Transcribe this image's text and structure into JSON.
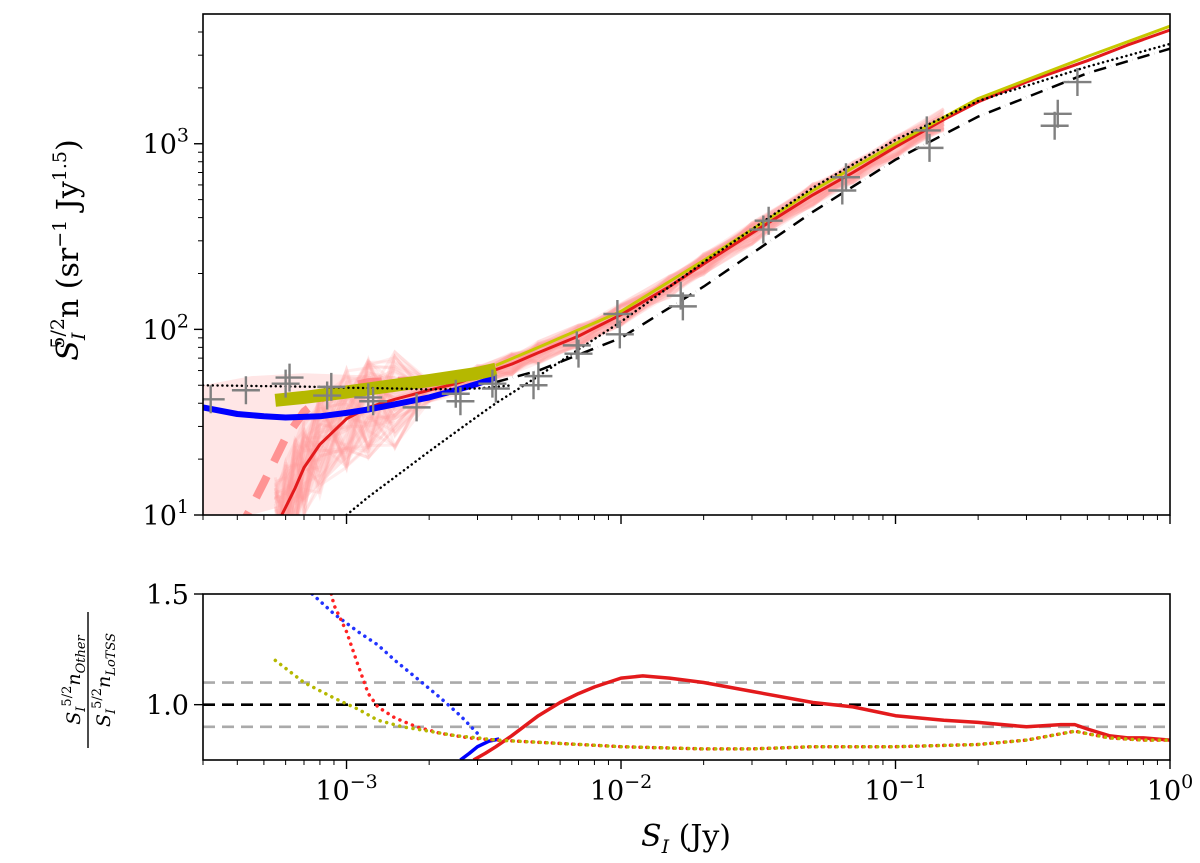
{
  "chart_data": [
    {
      "type": "line",
      "panel": "top",
      "xscale": "log",
      "yscale": "log",
      "xlim": [
        0.0003,
        1.0
      ],
      "ylim": [
        10,
        5000
      ],
      "grid": false,
      "ylabel": {
        "base": "S",
        "sub": "I",
        "sup": "5/2",
        "tail": "n (sr",
        "sup2": "−1",
        "mid": " Jy",
        "sup3": "1.5",
        "end": ")"
      },
      "xticks": [
        {
          "value": 0.001,
          "base": "10",
          "exp": "−3"
        },
        {
          "value": 0.01,
          "base": "10",
          "exp": "−2"
        },
        {
          "value": 0.1,
          "base": "10",
          "exp": "−1"
        },
        {
          "value": 1,
          "base": "10",
          "exp": "0"
        }
      ],
      "yticks": [
        {
          "value": 10,
          "base": "10",
          "exp": "1"
        },
        {
          "value": 100,
          "base": "10",
          "exp": "2"
        },
        {
          "value": 1000,
          "base": "10",
          "exp": "3"
        }
      ],
      "band_color": "#ff9a9a",
      "series": [
        {
          "style": "solid",
          "color": "#e31a1c",
          "width": 3,
          "x": [
            0.00055,
            0.0006,
            0.00065,
            0.0007,
            0.0008,
            0.001,
            0.0012,
            0.0015,
            0.002,
            0.0025,
            0.003,
            0.004,
            0.005,
            0.007,
            0.01,
            0.015,
            0.02,
            0.03,
            0.05,
            0.07,
            0.1,
            0.15,
            0.2,
            0.3,
            0.5,
            0.7,
            1.0
          ],
          "y": [
            8.5,
            11,
            14,
            18,
            24,
            33,
            38,
            42,
            47,
            51,
            56,
            65,
            75,
            92,
            120,
            170,
            225,
            330,
            530,
            700,
            960,
            1350,
            1680,
            2150,
            2800,
            3400,
            4100
          ]
        },
        {
          "style": "dashed",
          "color": "#ff7777",
          "width": 8,
          "opacity": 0.75,
          "x": [
            0.0004,
            0.00045,
            0.0005,
            0.00055,
            0.0006,
            0.0007,
            0.0008,
            0.001,
            0.0012,
            0.0015,
            0.002
          ],
          "y": [
            8,
            11,
            15,
            20,
            26,
            36,
            42,
            49,
            52,
            53,
            53
          ]
        },
        {
          "style": "solid",
          "color": "#0000ff",
          "width": 6,
          "x": [
            0.0003,
            0.0004,
            0.0005,
            0.0006,
            0.0008,
            0.001,
            0.0012,
            0.0015,
            0.002,
            0.0025,
            0.003,
            0.0035
          ],
          "y": [
            38,
            35,
            34,
            33.5,
            34,
            35.5,
            37,
            39.5,
            43,
            47,
            51,
            55
          ]
        },
        {
          "style": "solid",
          "color": "#b5b800",
          "width": 13,
          "x": [
            0.00055,
            0.0007,
            0.001,
            0.0015,
            0.002,
            0.003,
            0.0035
          ],
          "y": [
            41.5,
            43,
            46,
            50,
            53,
            58,
            61
          ]
        },
        {
          "style": "solid",
          "color": "#c6c800",
          "width": 3,
          "x": [
            0.0035,
            0.005,
            0.01,
            0.02,
            0.05,
            0.1,
            0.2,
            0.5,
            1.0
          ],
          "y": [
            64,
            80,
            125,
            235,
            560,
            1000,
            1750,
            2950,
            4300
          ]
        },
        {
          "style": "dotted",
          "color": "#000000",
          "width": 2.5,
          "x": [
            0.0003,
            0.0005,
            0.0008,
            0.001,
            0.0015,
            0.002,
            0.003,
            0.004
          ],
          "y": [
            50,
            49.5,
            49,
            48.5,
            48,
            47.5,
            48,
            50
          ]
        },
        {
          "style": "dotted",
          "color": "#000000",
          "width": 2.5,
          "x": [
            0.001,
            0.0012,
            0.0015,
            0.002,
            0.0025,
            0.003,
            0.0035,
            0.005,
            0.007,
            0.01,
            0.02,
            0.05,
            0.1,
            0.2,
            0.5,
            1.0
          ],
          "y": [
            10,
            12.5,
            16,
            22,
            28,
            34,
            40,
            56,
            78,
            110,
            230,
            580,
            1050,
            1700,
            2600,
            3450
          ]
        },
        {
          "style": "dashdot",
          "color": "#000000",
          "width": 2.5,
          "x": [
            0.0035,
            0.005,
            0.01,
            0.02,
            0.05,
            0.1,
            0.2,
            0.5,
            1.0
          ],
          "y": [
            52,
            60,
            90,
            170,
            430,
            820,
            1400,
            2400,
            3250
          ]
        }
      ],
      "points": {
        "color": "#808080",
        "x": [
          0.00032,
          0.00043,
          0.0006,
          0.00062,
          0.00085,
          0.00088,
          0.0012,
          0.00125,
          0.0018,
          0.0025,
          0.0026,
          0.0034,
          0.0035,
          0.0048,
          0.005,
          0.0069,
          0.007,
          0.0097,
          0.0099,
          0.0165,
          0.0168,
          0.033,
          0.0345,
          0.064,
          0.066,
          0.13,
          0.133,
          0.38,
          0.39,
          0.46
        ],
        "y": [
          42,
          47,
          51,
          55,
          44,
          49,
          43,
          41,
          38,
          45,
          41,
          51,
          48,
          50,
          56,
          82,
          74,
          121,
          94,
          152,
          133,
          345,
          385,
          560,
          660,
          1180,
          950,
          1250,
          1450,
          2150
        ]
      }
    },
    {
      "type": "line",
      "panel": "bottom",
      "xscale": "log",
      "xlim": [
        0.0003,
        1.0
      ],
      "ylim": [
        0.75,
        1.5
      ],
      "grid": false,
      "xlabel": {
        "base": "S",
        "sub": "I",
        "tail": " (Jy)"
      },
      "ylabel": {
        "num_base": "S",
        "num_sub": "I",
        "num_sup": "5/2",
        "num_n": "n",
        "num_nsub": "Other",
        "den_base": "S",
        "den_sub": "I",
        "den_sup": "5/2",
        "den_n": "n",
        "den_nsub": "LoTSS"
      },
      "xticks": [
        {
          "value": 0.001,
          "base": "10",
          "exp": "−3"
        },
        {
          "value": 0.01,
          "base": "10",
          "exp": "−2"
        },
        {
          "value": 0.1,
          "base": "10",
          "exp": "−1"
        },
        {
          "value": 1,
          "base": "10",
          "exp": "0"
        }
      ],
      "yticks": [
        {
          "value": 1.0,
          "label": "1.0"
        },
        {
          "value": 1.5,
          "label": "1.5"
        }
      ],
      "hlines": [
        {
          "y": 1.1,
          "color": "#aaaaaa",
          "style": "dashed"
        },
        {
          "y": 0.9,
          "color": "#aaaaaa",
          "style": "dashed"
        },
        {
          "y": 1.0,
          "color": "#000000",
          "style": "dashed"
        }
      ],
      "series": [
        {
          "style": "solid",
          "color": "#0000ff",
          "width": 3.5,
          "x": [
            0.0026,
            0.0028,
            0.003,
            0.0033,
            0.0036
          ],
          "y": [
            0.75,
            0.78,
            0.81,
            0.835,
            0.845
          ]
        },
        {
          "style": "solid",
          "color": "#e31a1c",
          "width": 3.5,
          "x": [
            0.0029,
            0.0032,
            0.0035,
            0.004,
            0.005,
            0.006,
            0.007,
            0.008,
            0.01,
            0.012,
            0.015,
            0.02,
            0.03,
            0.05,
            0.07,
            0.1,
            0.15,
            0.2,
            0.3,
            0.4,
            0.45,
            0.5,
            0.6,
            0.7,
            0.8,
            1.0
          ],
          "y": [
            0.75,
            0.78,
            0.81,
            0.86,
            0.95,
            1.01,
            1.05,
            1.08,
            1.12,
            1.13,
            1.12,
            1.1,
            1.06,
            1.01,
            0.99,
            0.95,
            0.93,
            0.92,
            0.9,
            0.91,
            0.91,
            0.89,
            0.86,
            0.85,
            0.85,
            0.84
          ]
        },
        {
          "style": "dotted",
          "color": "#2233ff",
          "width": 3.5,
          "x": [
            0.00075,
            0.0009,
            0.0011,
            0.0013,
            0.0015,
            0.0018,
            0.0022,
            0.0026,
            0.003
          ],
          "y": [
            1.5,
            1.41,
            1.33,
            1.27,
            1.2,
            1.12,
            1.03,
            0.95,
            0.87
          ]
        },
        {
          "style": "dotted",
          "color": "#ff2222",
          "width": 3.5,
          "x": [
            0.00088,
            0.0009,
            0.001,
            0.0011,
            0.0012,
            0.0013,
            0.0015,
            0.0018,
            0.0022,
            0.0028,
            0.0035,
            0.005,
            0.01,
            0.02,
            0.03,
            0.05,
            0.1,
            0.2,
            0.3,
            0.45,
            0.6,
            0.8,
            1.0
          ],
          "y": [
            1.5,
            1.45,
            1.33,
            1.18,
            1.05,
            0.99,
            0.94,
            0.9,
            0.87,
            0.85,
            0.84,
            0.83,
            0.81,
            0.8,
            0.8,
            0.81,
            0.81,
            0.82,
            0.84,
            0.88,
            0.85,
            0.84,
            0.84
          ]
        },
        {
          "style": "dotted",
          "color": "#b5b800",
          "width": 3.5,
          "x": [
            0.00055,
            0.0007,
            0.0009,
            0.0011,
            0.0013,
            0.0016,
            0.002,
            0.0025,
            0.003,
            0.0035,
            0.005,
            0.01,
            0.02,
            0.03,
            0.05,
            0.1,
            0.2,
            0.3,
            0.45,
            0.6,
            0.8,
            1.0
          ],
          "y": [
            1.2,
            1.1,
            1.03,
            0.98,
            0.93,
            0.9,
            0.88,
            0.86,
            0.85,
            0.84,
            0.83,
            0.81,
            0.8,
            0.8,
            0.81,
            0.81,
            0.82,
            0.84,
            0.88,
            0.85,
            0.84,
            0.84
          ]
        }
      ]
    }
  ]
}
